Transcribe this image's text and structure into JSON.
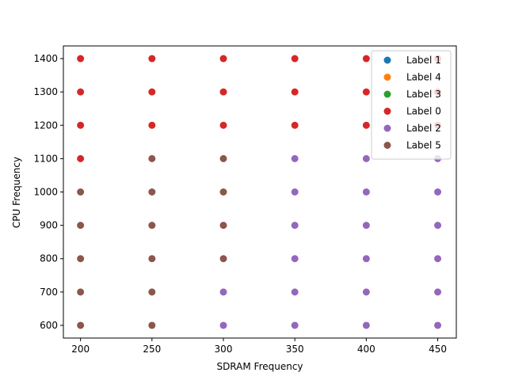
{
  "chart_data": {
    "type": "scatter",
    "xlabel": "SDRAM Frequency",
    "ylabel": "CPU Frequency",
    "xlim": [
      188,
      463
    ],
    "ylim": [
      562,
      1438
    ],
    "x_ticks": [
      200,
      250,
      300,
      350,
      400,
      450
    ],
    "y_ticks": [
      600,
      700,
      800,
      900,
      1000,
      1100,
      1200,
      1300,
      1400
    ],
    "grid": false,
    "legend_position": "top-right",
    "series": [
      {
        "name": "Label 1",
        "color": "#1f77b4",
        "points": []
      },
      {
        "name": "Label 4",
        "color": "#ff7f0e",
        "points": []
      },
      {
        "name": "Label 3",
        "color": "#2ca02c",
        "points": []
      },
      {
        "name": "Label 0",
        "color": "#d62728",
        "points": [
          [
            200,
            1100
          ],
          [
            200,
            1200
          ],
          [
            200,
            1300
          ],
          [
            200,
            1400
          ],
          [
            250,
            1200
          ],
          [
            250,
            1300
          ],
          [
            250,
            1400
          ],
          [
            300,
            1200
          ],
          [
            300,
            1300
          ],
          [
            300,
            1400
          ],
          [
            350,
            1200
          ],
          [
            350,
            1300
          ],
          [
            350,
            1400
          ],
          [
            400,
            1200
          ],
          [
            400,
            1300
          ],
          [
            400,
            1400
          ],
          [
            450,
            1200
          ],
          [
            450,
            1300
          ],
          [
            450,
            1400
          ]
        ]
      },
      {
        "name": "Label 2",
        "color": "#9467bd",
        "points": [
          [
            300,
            600
          ],
          [
            300,
            700
          ],
          [
            350,
            600
          ],
          [
            350,
            700
          ],
          [
            350,
            800
          ],
          [
            350,
            900
          ],
          [
            350,
            1000
          ],
          [
            350,
            1100
          ],
          [
            400,
            600
          ],
          [
            400,
            700
          ],
          [
            400,
            800
          ],
          [
            400,
            900
          ],
          [
            400,
            1000
          ],
          [
            400,
            1100
          ],
          [
            450,
            600
          ],
          [
            450,
            700
          ],
          [
            450,
            800
          ],
          [
            450,
            900
          ],
          [
            450,
            1000
          ],
          [
            450,
            1100
          ]
        ]
      },
      {
        "name": "Label 5",
        "color": "#8c564b",
        "points": [
          [
            200,
            600
          ],
          [
            200,
            700
          ],
          [
            200,
            800
          ],
          [
            200,
            900
          ],
          [
            200,
            1000
          ],
          [
            250,
            600
          ],
          [
            250,
            700
          ],
          [
            250,
            800
          ],
          [
            250,
            900
          ],
          [
            250,
            1000
          ],
          [
            250,
            1100
          ],
          [
            300,
            800
          ],
          [
            300,
            900
          ],
          [
            300,
            1000
          ],
          [
            300,
            1100
          ]
        ]
      }
    ]
  }
}
